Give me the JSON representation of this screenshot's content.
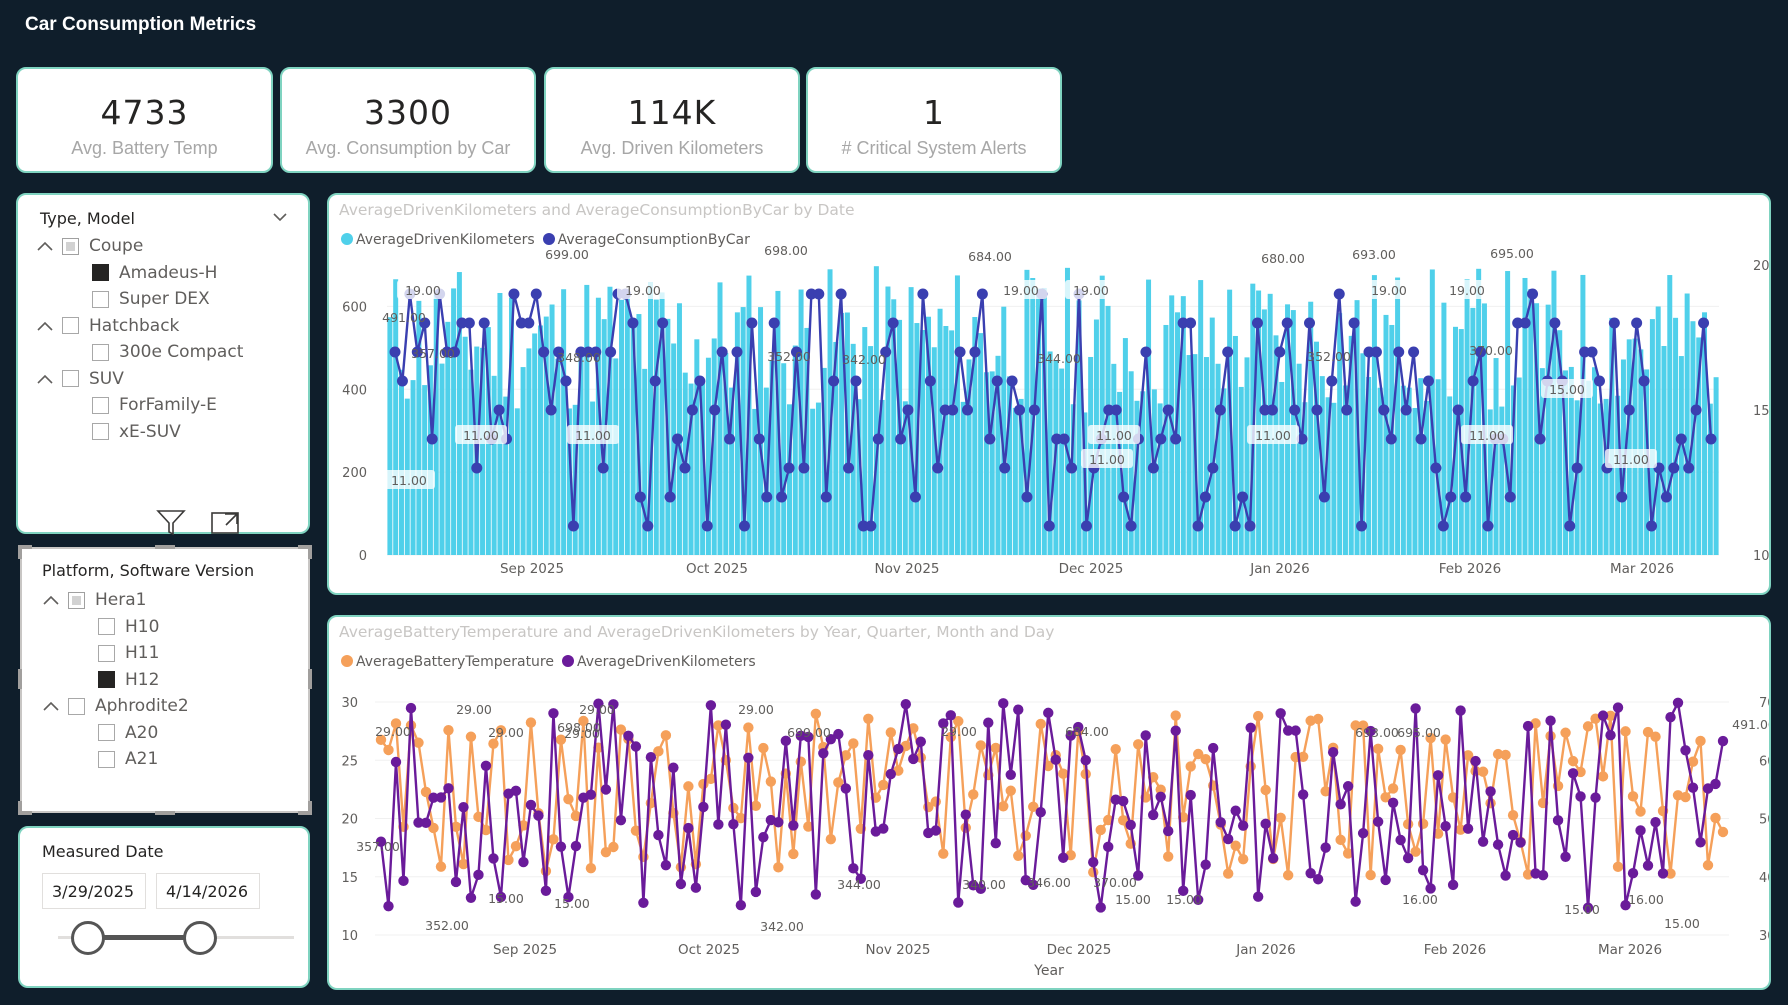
{
  "header": {
    "title": "Car Consumption Metrics"
  },
  "kpis": [
    {
      "value": "4733",
      "label": "Avg. Battery Temp"
    },
    {
      "value": "3300",
      "label": "Avg. Consumption by Car"
    },
    {
      "value": "114K",
      "label": "Avg. Driven Kilometers"
    },
    {
      "value": "1",
      "label": "# Critical System Alerts"
    }
  ],
  "slicer_type": {
    "header": "Type, Model",
    "items": [
      {
        "label": "Coupe",
        "level": 0,
        "state": "partial"
      },
      {
        "label": "Amadeus-H",
        "level": 1,
        "state": "checked"
      },
      {
        "label": "Super DEX",
        "level": 1,
        "state": "unchecked"
      },
      {
        "label": "Hatchback",
        "level": 0,
        "state": "unchecked"
      },
      {
        "label": "300e Compact",
        "level": 1,
        "state": "unchecked"
      },
      {
        "label": "SUV",
        "level": 0,
        "state": "unchecked"
      },
      {
        "label": "ForFamily-E",
        "level": 1,
        "state": "unchecked"
      },
      {
        "label": "xE-SUV",
        "level": 1,
        "state": "unchecked"
      }
    ]
  },
  "slicer_platform": {
    "header": "Platform, Software Version",
    "items": [
      {
        "label": "Hera1",
        "level": 0,
        "state": "partial"
      },
      {
        "label": "H10",
        "level": 1,
        "state": "unchecked"
      },
      {
        "label": "H11",
        "level": 1,
        "state": "unchecked"
      },
      {
        "label": "H12",
        "level": 1,
        "state": "checked"
      },
      {
        "label": "Aphrodite2",
        "level": 0,
        "state": "unchecked"
      },
      {
        "label": "A20",
        "level": 1,
        "state": "unchecked"
      },
      {
        "label": "A21",
        "level": 1,
        "state": "unchecked"
      }
    ]
  },
  "date_slicer": {
    "header": "Measured Date",
    "start": "3/29/2025",
    "end": "4/14/2026"
  },
  "toolbar_icons": [
    "filter-icon",
    "focus-mode-icon",
    "more-options-icon"
  ],
  "colors": {
    "background": "#0f1e2b",
    "card_border": "#7fd3c0",
    "bar_cyan": "#4fd0ea",
    "line_indigo": "#3a3fb0",
    "line_orange": "#f5a05a",
    "line_purple": "#6a1b9a"
  },
  "chart_data": [
    {
      "type": "bar",
      "title": "AverageDrivenKilometers and AverageConsumptionByCar by Date",
      "series": [
        {
          "name": "AverageDrivenKilometers",
          "kind": "bar",
          "axis": "left",
          "color": "#4fd0ea"
        },
        {
          "name": "AverageConsumptionByCar",
          "kind": "line",
          "axis": "right",
          "color": "#3a3fb0"
        }
      ],
      "x_ticks": [
        "Sep 2025",
        "Oct 2025",
        "Nov 2025",
        "Dec 2025",
        "Jan 2026",
        "Feb 2026",
        "Mar 2026"
      ],
      "y_left_ticks": [
        "0",
        "200",
        "400",
        "600"
      ],
      "y_right_ticks": [
        "10",
        "15",
        "20"
      ],
      "y_left_range": [
        0,
        700
      ],
      "y_right_range": [
        10,
        20
      ],
      "data_labels": [
        "699.00",
        "698.00",
        "684.00",
        "680.00",
        "693.00",
        "695.00",
        "491.00",
        "357.00",
        "348.00",
        "352.00",
        "342.00",
        "344.00",
        "352.00",
        "370.00",
        "19.00",
        "19.00",
        "19.00",
        "19.00",
        "19.00",
        "19.00",
        "11.00",
        "11.00",
        "11.00",
        "11.00",
        "11.00",
        "11.00",
        "11.00",
        "11.00",
        "15.00"
      ]
    },
    {
      "type": "line",
      "title": "AverageBatteryTemperature and AverageDrivenKilometers by Year, Quarter, Month and Day",
      "series": [
        {
          "name": "AverageBatteryTemperature",
          "axis": "left",
          "color": "#f5a05a"
        },
        {
          "name": "AverageDrivenKilometers",
          "axis": "right",
          "color": "#6a1b9a"
        }
      ],
      "x_ticks": [
        "Sep 2025",
        "Oct 2025",
        "Nov 2025",
        "Dec 2025",
        "Jan 2026",
        "Feb 2026",
        "Mar 2026"
      ],
      "xlabel": "Year",
      "y_left_ticks": [
        "10",
        "15",
        "20",
        "25",
        "30"
      ],
      "y_right_ticks": [
        "300",
        "400",
        "500",
        "600",
        "700"
      ],
      "y_left_range": [
        10,
        30
      ],
      "y_right_range": [
        300,
        700
      ],
      "data_labels": [
        "29.00",
        "29.00",
        "29.00",
        "29.00",
        "29.00",
        "29.00",
        "29.00",
        "699.00",
        "698.00",
        "684.00",
        "693.00",
        "695.00",
        "491.00",
        "357.00",
        "352.00",
        "342.00",
        "344.00",
        "340.00",
        "346.00",
        "370.00",
        "15.00",
        "15.00",
        "15.00",
        "15.00",
        "15.00",
        "15.00",
        "16.00",
        "16.00"
      ]
    }
  ]
}
